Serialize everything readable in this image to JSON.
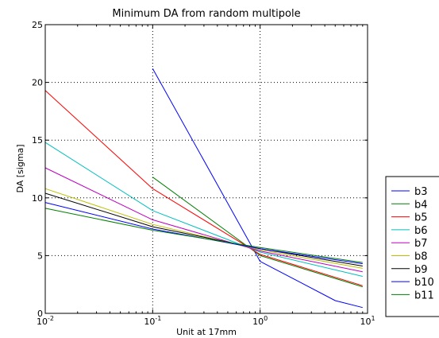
{
  "chart_data": {
    "type": "line",
    "title": "Minimum DA from random multipole",
    "xlabel": "Unit at 17mm",
    "ylabel": "DA [sigma]",
    "xscale": "log",
    "xlim": [
      0.01,
      10
    ],
    "ylim": [
      0,
      25
    ],
    "yticks": [
      "0",
      "5",
      "10",
      "15",
      "20",
      "25"
    ],
    "xticks": [
      {
        "value": 0.01,
        "base": "10",
        "exp": "-2"
      },
      {
        "value": 0.1,
        "base": "10",
        "exp": "-1"
      },
      {
        "value": 1,
        "base": "10",
        "exp": "0"
      },
      {
        "value": 10,
        "base": "10",
        "exp": "1"
      }
    ],
    "grid": true,
    "legend_position": "outside-right",
    "series": [
      {
        "name": "b3",
        "color": "#0000ff",
        "x": [
          0.1,
          1,
          5,
          9
        ],
        "y": [
          21.2,
          4.5,
          1.1,
          0.5
        ]
      },
      {
        "name": "b4",
        "color": "#008000",
        "x": [
          0.1,
          1,
          9
        ],
        "y": [
          11.8,
          5.0,
          2.3
        ]
      },
      {
        "name": "b5",
        "color": "#ff0000",
        "x": [
          0.01,
          0.1,
          1,
          9
        ],
        "y": [
          19.3,
          10.8,
          5.1,
          2.4
        ]
      },
      {
        "name": "b6",
        "color": "#00bfbf",
        "x": [
          0.01,
          0.1,
          1,
          9
        ],
        "y": [
          14.8,
          8.9,
          5.3,
          3.2
        ]
      },
      {
        "name": "b7",
        "color": "#bf00bf",
        "x": [
          0.01,
          0.1,
          1,
          9
        ],
        "y": [
          12.6,
          8.1,
          5.4,
          3.6
        ]
      },
      {
        "name": "b8",
        "color": "#bfbf00",
        "x": [
          0.01,
          0.1,
          1,
          9
        ],
        "y": [
          10.8,
          7.7,
          5.5,
          3.9
        ]
      },
      {
        "name": "b9",
        "color": "#000000",
        "x": [
          0.01,
          0.1,
          1,
          9
        ],
        "y": [
          10.4,
          7.5,
          5.6,
          4.1
        ]
      },
      {
        "name": "b10",
        "color": "#0000ff",
        "x": [
          0.01,
          0.1,
          1,
          9
        ],
        "y": [
          9.6,
          7.3,
          5.6,
          4.3
        ]
      },
      {
        "name": "b11",
        "color": "#008000",
        "x": [
          0.01,
          0.1,
          1,
          9
        ],
        "y": [
          9.1,
          7.2,
          5.7,
          4.4
        ]
      }
    ]
  }
}
